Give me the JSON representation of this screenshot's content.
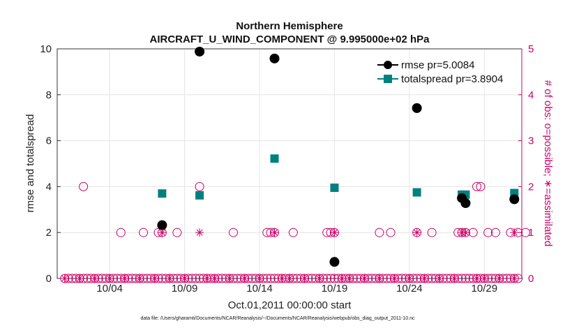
{
  "chart_data": {
    "type": "scatter",
    "title": "Northern Hemisphere",
    "subtitle": "AIRCRAFT_U_WIND_COMPONENT @ 9.995000e+02 hPa",
    "xlabel": "Oct.01,2011 00:00:00 start",
    "ylabel": "rmse and totalspread",
    "ylabel_right": "# of obs: o=possible; ∗=assimilated",
    "footnote": "data file: /Users/gharamti/Documents/NCAR/Reanalysis/~/Documents/NCAR/Reanalysis/webpub/obs_diag_output_2011-10.nc",
    "xlim": [
      0.5,
      31.5
    ],
    "ylim": [
      0,
      10
    ],
    "ylim_right": [
      0,
      5
    ],
    "x_ticks": [
      {
        "x": 4,
        "label": "10/04"
      },
      {
        "x": 9,
        "label": "10/09"
      },
      {
        "x": 14,
        "label": "10/14"
      },
      {
        "x": 19,
        "label": "10/19"
      },
      {
        "x": 24,
        "label": "10/24"
      },
      {
        "x": 29,
        "label": "10/29"
      }
    ],
    "y_ticks": [
      {
        "v": 0,
        "label": "0"
      },
      {
        "v": 2,
        "label": "2"
      },
      {
        "v": 4,
        "label": "4"
      },
      {
        "v": 6,
        "label": "6"
      },
      {
        "v": 8,
        "label": "8"
      },
      {
        "v": 10,
        "label": "10"
      }
    ],
    "y_ticks_right": [
      {
        "v": 0,
        "label": "0"
      },
      {
        "v": 1,
        "label": "1"
      },
      {
        "v": 2,
        "label": "2"
      },
      {
        "v": 3,
        "label": "3"
      },
      {
        "v": 4,
        "label": "4"
      },
      {
        "v": 5,
        "label": "5"
      }
    ],
    "grid": true,
    "legend_position": "top-right",
    "series": [
      {
        "name": "rmse pr=5.0084",
        "color": "#000000",
        "marker": "circle",
        "x": [
          7.5,
          10,
          15,
          19,
          24.5,
          27.5,
          27.75,
          31
        ],
        "values": [
          2.32,
          9.88,
          9.58,
          0.72,
          7.42,
          3.5,
          3.28,
          3.45
        ]
      },
      {
        "name": "totalspread pr=3.8904",
        "color": "#008080",
        "marker": "square",
        "x": [
          7.5,
          10,
          15,
          19,
          24.5,
          27.5,
          27.75,
          31
        ],
        "values": [
          3.7,
          3.62,
          5.22,
          3.95,
          3.75,
          3.65,
          3.65,
          3.72
        ]
      }
    ],
    "obs_possible": {
      "color": "#cc0066",
      "marker": "open-circle",
      "x": [
        1.0,
        1.25,
        1.5,
        1.75,
        2.0,
        2.25,
        2.5,
        2.75,
        3.0,
        3.25,
        3.5,
        3.75,
        4.0,
        4.25,
        4.5,
        4.75,
        5.0,
        5.25,
        5.5,
        5.75,
        6.0,
        6.25,
        6.5,
        6.75,
        7.0,
        7.25,
        7.5,
        7.75,
        8.0,
        8.25,
        8.5,
        8.75,
        9.0,
        9.25,
        9.5,
        9.75,
        10.0,
        10.25,
        10.5,
        10.75,
        11.0,
        11.25,
        11.5,
        11.75,
        12.0,
        12.25,
        12.5,
        12.75,
        13.0,
        13.25,
        13.5,
        13.75,
        14.0,
        14.25,
        14.5,
        14.75,
        15.0,
        15.25,
        15.5,
        15.75,
        16.0,
        16.25,
        16.5,
        16.75,
        17.0,
        17.25,
        17.5,
        17.75,
        18.0,
        18.25,
        18.5,
        18.75,
        19.0,
        19.25,
        19.5,
        19.75,
        20.0,
        20.25,
        20.5,
        20.75,
        21.0,
        21.25,
        21.5,
        21.75,
        22.0,
        22.25,
        22.5,
        22.75,
        23.0,
        23.25,
        23.5,
        23.75,
        24.0,
        24.25,
        24.5,
        24.75,
        25.0,
        25.25,
        25.5,
        25.75,
        26.0,
        26.25,
        26.5,
        26.75,
        27.0,
        27.25,
        27.5,
        27.75,
        28.0,
        28.25,
        28.5,
        28.75,
        29.0,
        29.25,
        29.5,
        29.75,
        30.0,
        30.25,
        30.5,
        30.75,
        31.0,
        31.25,
        2.25,
        7.5,
        10,
        14.5,
        15,
        18.75,
        19,
        24.5,
        27.5,
        28.5,
        28.75,
        4.75,
        6.25,
        7.25,
        8.5,
        12.25,
        14.75,
        16.25,
        18.5,
        22.0,
        22.75,
        25.5,
        27.25,
        27.75,
        28.25,
        29.25,
        29.75,
        30.75,
        31.25,
        31.75
      ],
      "values": [
        0,
        0,
        0,
        0,
        0,
        0,
        0,
        0,
        0,
        0,
        0,
        0,
        0,
        0,
        0,
        0,
        0,
        0,
        0,
        0,
        0,
        0,
        0,
        0,
        0,
        0,
        0,
        0,
        0,
        0,
        0,
        0,
        0,
        0,
        0,
        0,
        0,
        0,
        0,
        0,
        0,
        0,
        0,
        0,
        0,
        0,
        0,
        0,
        0,
        0,
        0,
        0,
        0,
        0,
        0,
        0,
        0,
        0,
        0,
        0,
        0,
        0,
        0,
        0,
        0,
        0,
        0,
        0,
        0,
        0,
        0,
        0,
        0,
        0,
        0,
        0,
        0,
        0,
        0,
        0,
        0,
        0,
        0,
        0,
        0,
        0,
        0,
        0,
        0,
        0,
        0,
        0,
        0,
        0,
        0,
        0,
        0,
        0,
        0,
        0,
        0,
        0,
        0,
        0,
        0,
        0,
        0,
        0,
        0,
        0,
        0,
        0,
        0,
        0,
        0,
        0,
        0,
        0,
        0,
        0,
        0,
        0,
        2,
        1,
        2,
        1,
        1,
        1,
        1,
        1,
        1,
        2,
        2,
        1,
        1,
        1,
        1,
        1,
        1,
        1,
        1,
        1,
        1,
        1,
        1,
        1,
        1,
        1,
        1,
        1,
        1,
        1
      ]
    },
    "obs_assimilated": {
      "color": "#cc0066",
      "marker": "asterisk",
      "x": [
        7.5,
        10,
        15,
        19,
        24.5,
        27.5,
        27.75,
        31,
        1.0,
        2.0,
        3.0,
        4.0,
        5.0,
        6.0,
        7.0,
        8.0,
        9.0,
        10.5,
        11.0,
        12.0,
        13.0,
        14.0,
        15.5,
        16.0,
        17.0,
        18.0,
        19.5,
        20.0,
        21.0,
        22.0,
        23.0,
        24.0,
        25.0,
        26.0,
        27.0,
        28.5,
        29.0,
        30.0,
        31.0
      ],
      "values": [
        1,
        1,
        1,
        1,
        1,
        1,
        1,
        1,
        0,
        0,
        0,
        0,
        0,
        0,
        0,
        0,
        0,
        0,
        0,
        0,
        0,
        0,
        0,
        0,
        0,
        0,
        0,
        0,
        0,
        0,
        0,
        0,
        0,
        0,
        0,
        0,
        0,
        0,
        0
      ]
    }
  }
}
